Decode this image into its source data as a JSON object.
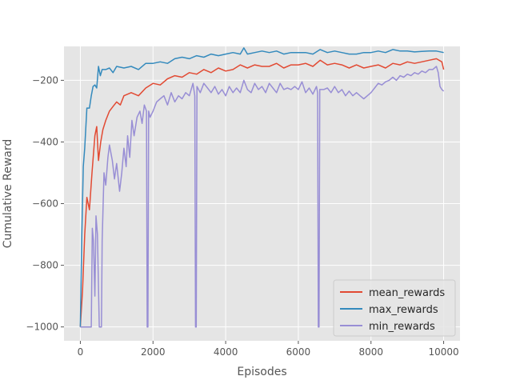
{
  "chart_data": {
    "type": "line",
    "xlabel": "Episodes",
    "ylabel": "Cumulative Reward",
    "xlim": [
      -450,
      10450
    ],
    "ylim": [
      -1045,
      -90
    ],
    "xticks": [
      0,
      2000,
      4000,
      6000,
      8000,
      10000
    ],
    "yticks": [
      -1000,
      -800,
      -600,
      -400,
      -200
    ],
    "grid": true,
    "legend_position": "lower-right",
    "colors": {
      "background": "#e5e5e5",
      "grid": "#ffffff",
      "tick_text": "#555555"
    },
    "series": [
      {
        "name": "mean_rewards",
        "color": "#e24a33",
        "points": [
          [
            0,
            -1000
          ],
          [
            60,
            -880
          ],
          [
            120,
            -700
          ],
          [
            180,
            -580
          ],
          [
            250,
            -620
          ],
          [
            320,
            -500
          ],
          [
            400,
            -380
          ],
          [
            450,
            -350
          ],
          [
            500,
            -460
          ],
          [
            560,
            -400
          ],
          [
            620,
            -360
          ],
          [
            700,
            -330
          ],
          [
            800,
            -300
          ],
          [
            900,
            -285
          ],
          [
            1000,
            -270
          ],
          [
            1100,
            -280
          ],
          [
            1200,
            -250
          ],
          [
            1400,
            -240
          ],
          [
            1600,
            -250
          ],
          [
            1800,
            -225
          ],
          [
            2000,
            -210
          ],
          [
            2200,
            -215
          ],
          [
            2400,
            -195
          ],
          [
            2600,
            -185
          ],
          [
            2800,
            -190
          ],
          [
            3000,
            -175
          ],
          [
            3200,
            -180
          ],
          [
            3400,
            -165
          ],
          [
            3600,
            -175
          ],
          [
            3800,
            -160
          ],
          [
            4000,
            -170
          ],
          [
            4200,
            -165
          ],
          [
            4400,
            -150
          ],
          [
            4600,
            -160
          ],
          [
            4800,
            -150
          ],
          [
            5000,
            -155
          ],
          [
            5200,
            -155
          ],
          [
            5400,
            -145
          ],
          [
            5600,
            -160
          ],
          [
            5800,
            -150
          ],
          [
            6000,
            -150
          ],
          [
            6200,
            -145
          ],
          [
            6400,
            -155
          ],
          [
            6600,
            -135
          ],
          [
            6800,
            -150
          ],
          [
            7000,
            -145
          ],
          [
            7200,
            -150
          ],
          [
            7400,
            -160
          ],
          [
            7600,
            -150
          ],
          [
            7800,
            -160
          ],
          [
            8000,
            -155
          ],
          [
            8200,
            -150
          ],
          [
            8400,
            -160
          ],
          [
            8600,
            -145
          ],
          [
            8800,
            -150
          ],
          [
            9000,
            -140
          ],
          [
            9200,
            -145
          ],
          [
            9400,
            -140
          ],
          [
            9600,
            -135
          ],
          [
            9800,
            -130
          ],
          [
            9950,
            -140
          ],
          [
            10000,
            -165
          ]
        ]
      },
      {
        "name": "max_rewards",
        "color": "#348abd",
        "points": [
          [
            0,
            -1000
          ],
          [
            40,
            -700
          ],
          [
            80,
            -480
          ],
          [
            120,
            -420
          ],
          [
            180,
            -290
          ],
          [
            250,
            -290
          ],
          [
            300,
            -250
          ],
          [
            350,
            -220
          ],
          [
            400,
            -215
          ],
          [
            450,
            -225
          ],
          [
            500,
            -155
          ],
          [
            550,
            -185
          ],
          [
            600,
            -165
          ],
          [
            700,
            -165
          ],
          [
            800,
            -160
          ],
          [
            900,
            -175
          ],
          [
            1000,
            -155
          ],
          [
            1200,
            -160
          ],
          [
            1400,
            -155
          ],
          [
            1600,
            -165
          ],
          [
            1800,
            -145
          ],
          [
            2000,
            -145
          ],
          [
            2200,
            -140
          ],
          [
            2400,
            -145
          ],
          [
            2600,
            -130
          ],
          [
            2800,
            -125
          ],
          [
            3000,
            -130
          ],
          [
            3200,
            -120
          ],
          [
            3400,
            -125
          ],
          [
            3600,
            -115
          ],
          [
            3800,
            -120
          ],
          [
            4000,
            -115
          ],
          [
            4200,
            -110
          ],
          [
            4400,
            -115
          ],
          [
            4500,
            -95
          ],
          [
            4600,
            -115
          ],
          [
            4800,
            -110
          ],
          [
            5000,
            -105
          ],
          [
            5200,
            -110
          ],
          [
            5400,
            -105
          ],
          [
            5600,
            -115
          ],
          [
            5800,
            -110
          ],
          [
            6000,
            -110
          ],
          [
            6200,
            -110
          ],
          [
            6400,
            -115
          ],
          [
            6600,
            -100
          ],
          [
            6800,
            -110
          ],
          [
            7000,
            -105
          ],
          [
            7200,
            -110
          ],
          [
            7400,
            -115
          ],
          [
            7600,
            -115
          ],
          [
            7800,
            -110
          ],
          [
            8000,
            -110
          ],
          [
            8200,
            -105
          ],
          [
            8400,
            -110
          ],
          [
            8600,
            -100
          ],
          [
            8800,
            -105
          ],
          [
            9000,
            -105
          ],
          [
            9200,
            -108
          ],
          [
            9400,
            -106
          ],
          [
            9600,
            -105
          ],
          [
            9800,
            -105
          ],
          [
            10000,
            -110
          ]
        ]
      },
      {
        "name": "min_rewards",
        "color": "#988ed5",
        "points": [
          [
            0,
            -1000
          ],
          [
            60,
            -1000
          ],
          [
            120,
            -1000
          ],
          [
            200,
            -1000
          ],
          [
            300,
            -1000
          ],
          [
            330,
            -680
          ],
          [
            360,
            -720
          ],
          [
            400,
            -900
          ],
          [
            430,
            -640
          ],
          [
            470,
            -700
          ],
          [
            520,
            -1000
          ],
          [
            580,
            -1000
          ],
          [
            600,
            -720
          ],
          [
            650,
            -500
          ],
          [
            700,
            -540
          ],
          [
            760,
            -450
          ],
          [
            800,
            -410
          ],
          [
            880,
            -460
          ],
          [
            940,
            -520
          ],
          [
            1000,
            -470
          ],
          [
            1080,
            -560
          ],
          [
            1140,
            -500
          ],
          [
            1200,
            -420
          ],
          [
            1260,
            -480
          ],
          [
            1300,
            -380
          ],
          [
            1360,
            -450
          ],
          [
            1420,
            -330
          ],
          [
            1480,
            -380
          ],
          [
            1560,
            -320
          ],
          [
            1640,
            -300
          ],
          [
            1700,
            -340
          ],
          [
            1760,
            -280
          ],
          [
            1820,
            -300
          ],
          [
            1840,
            -1000
          ],
          [
            1860,
            -1000
          ],
          [
            1880,
            -300
          ],
          [
            1920,
            -320
          ],
          [
            2000,
            -300
          ],
          [
            2100,
            -270
          ],
          [
            2200,
            -260
          ],
          [
            2300,
            -250
          ],
          [
            2400,
            -280
          ],
          [
            2500,
            -240
          ],
          [
            2600,
            -270
          ],
          [
            2700,
            -250
          ],
          [
            2800,
            -260
          ],
          [
            2900,
            -240
          ],
          [
            3000,
            -250
          ],
          [
            3100,
            -210
          ],
          [
            3150,
            -250
          ],
          [
            3170,
            -1000
          ],
          [
            3190,
            -1000
          ],
          [
            3210,
            -220
          ],
          [
            3300,
            -240
          ],
          [
            3400,
            -210
          ],
          [
            3500,
            -225
          ],
          [
            3600,
            -240
          ],
          [
            3700,
            -220
          ],
          [
            3800,
            -245
          ],
          [
            3900,
            -230
          ],
          [
            4000,
            -250
          ],
          [
            4100,
            -220
          ],
          [
            4200,
            -240
          ],
          [
            4300,
            -225
          ],
          [
            4400,
            -240
          ],
          [
            4500,
            -200
          ],
          [
            4600,
            -230
          ],
          [
            4700,
            -240
          ],
          [
            4800,
            -210
          ],
          [
            4900,
            -230
          ],
          [
            5000,
            -220
          ],
          [
            5100,
            -240
          ],
          [
            5200,
            -210
          ],
          [
            5300,
            -225
          ],
          [
            5400,
            -240
          ],
          [
            5500,
            -210
          ],
          [
            5600,
            -230
          ],
          [
            5700,
            -225
          ],
          [
            5800,
            -230
          ],
          [
            5900,
            -220
          ],
          [
            6000,
            -230
          ],
          [
            6100,
            -205
          ],
          [
            6200,
            -240
          ],
          [
            6300,
            -225
          ],
          [
            6400,
            -245
          ],
          [
            6500,
            -220
          ],
          [
            6530,
            -240
          ],
          [
            6550,
            -1000
          ],
          [
            6570,
            -1000
          ],
          [
            6590,
            -230
          ],
          [
            6700,
            -230
          ],
          [
            6800,
            -225
          ],
          [
            6900,
            -240
          ],
          [
            7000,
            -220
          ],
          [
            7100,
            -240
          ],
          [
            7200,
            -230
          ],
          [
            7300,
            -250
          ],
          [
            7400,
            -235
          ],
          [
            7500,
            -250
          ],
          [
            7600,
            -240
          ],
          [
            7700,
            -250
          ],
          [
            7800,
            -260
          ],
          [
            7900,
            -250
          ],
          [
            8000,
            -240
          ],
          [
            8100,
            -225
          ],
          [
            8200,
            -210
          ],
          [
            8300,
            -215
          ],
          [
            8400,
            -205
          ],
          [
            8500,
            -200
          ],
          [
            8600,
            -190
          ],
          [
            8700,
            -200
          ],
          [
            8800,
            -185
          ],
          [
            8900,
            -190
          ],
          [
            9000,
            -180
          ],
          [
            9100,
            -185
          ],
          [
            9200,
            -175
          ],
          [
            9300,
            -180
          ],
          [
            9400,
            -170
          ],
          [
            9500,
            -175
          ],
          [
            9600,
            -165
          ],
          [
            9700,
            -165
          ],
          [
            9800,
            -155
          ],
          [
            9850,
            -175
          ],
          [
            9900,
            -220
          ],
          [
            9950,
            -230
          ],
          [
            10000,
            -235
          ]
        ]
      }
    ]
  }
}
